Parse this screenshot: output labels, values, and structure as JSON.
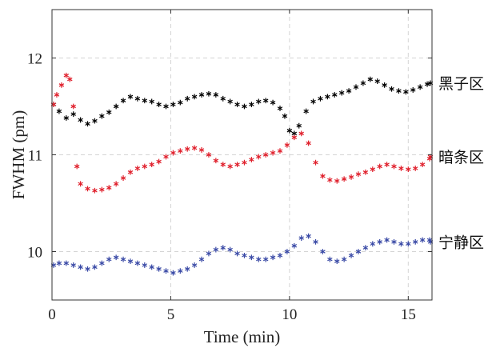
{
  "chart_data": {
    "type": "scatter",
    "title": "",
    "xlabel": "Time (min)",
    "ylabel": "FWHM (pm)",
    "xlim": [
      0,
      16
    ],
    "ylim": [
      9.5,
      12.5
    ],
    "xticks": [
      "0",
      "5",
      "10",
      "15"
    ],
    "yticks": [
      "10",
      "11",
      "12"
    ],
    "grid": true,
    "marker": "asterisk",
    "series": [
      {
        "name": "黑子区",
        "color": "#000000",
        "points": [
          [
            0.0,
            11.52
          ],
          [
            0.3,
            11.45
          ],
          [
            0.6,
            11.38
          ],
          [
            0.9,
            11.42
          ],
          [
            1.2,
            11.36
          ],
          [
            1.5,
            11.32
          ],
          [
            1.8,
            11.35
          ],
          [
            2.1,
            11.4
          ],
          [
            2.4,
            11.44
          ],
          [
            2.7,
            11.5
          ],
          [
            3.0,
            11.56
          ],
          [
            3.3,
            11.6
          ],
          [
            3.6,
            11.58
          ],
          [
            3.9,
            11.56
          ],
          [
            4.2,
            11.55
          ],
          [
            4.5,
            11.52
          ],
          [
            4.8,
            11.5
          ],
          [
            5.1,
            11.52
          ],
          [
            5.4,
            11.54
          ],
          [
            5.7,
            11.58
          ],
          [
            6.0,
            11.6
          ],
          [
            6.3,
            11.62
          ],
          [
            6.6,
            11.63
          ],
          [
            6.9,
            11.62
          ],
          [
            7.2,
            11.58
          ],
          [
            7.5,
            11.55
          ],
          [
            7.8,
            11.52
          ],
          [
            8.1,
            11.5
          ],
          [
            8.4,
            11.52
          ],
          [
            8.7,
            11.55
          ],
          [
            9.0,
            11.56
          ],
          [
            9.3,
            11.54
          ],
          [
            9.6,
            11.48
          ],
          [
            9.8,
            11.4
          ],
          [
            10.0,
            11.25
          ],
          [
            10.2,
            11.22
          ],
          [
            10.4,
            11.3
          ],
          [
            10.7,
            11.45
          ],
          [
            11.0,
            11.55
          ],
          [
            11.3,
            11.58
          ],
          [
            11.6,
            11.6
          ],
          [
            11.9,
            11.62
          ],
          [
            12.2,
            11.64
          ],
          [
            12.5,
            11.66
          ],
          [
            12.8,
            11.7
          ],
          [
            13.1,
            11.74
          ],
          [
            13.4,
            11.78
          ],
          [
            13.7,
            11.76
          ],
          [
            14.0,
            11.72
          ],
          [
            14.3,
            11.68
          ],
          [
            14.6,
            11.66
          ],
          [
            14.9,
            11.65
          ],
          [
            15.2,
            11.67
          ],
          [
            15.5,
            11.7
          ],
          [
            15.8,
            11.73
          ],
          [
            16.0,
            11.74
          ]
        ]
      },
      {
        "name": "暗条区",
        "color": "#e0202c",
        "points": [
          [
            0.0,
            11.52
          ],
          [
            0.2,
            11.62
          ],
          [
            0.4,
            11.72
          ],
          [
            0.6,
            11.82
          ],
          [
            0.75,
            11.78
          ],
          [
            0.9,
            11.5
          ],
          [
            1.05,
            10.88
          ],
          [
            1.2,
            10.7
          ],
          [
            1.5,
            10.65
          ],
          [
            1.8,
            10.63
          ],
          [
            2.1,
            10.64
          ],
          [
            2.4,
            10.66
          ],
          [
            2.7,
            10.7
          ],
          [
            3.0,
            10.76
          ],
          [
            3.3,
            10.82
          ],
          [
            3.6,
            10.86
          ],
          [
            3.9,
            10.88
          ],
          [
            4.2,
            10.9
          ],
          [
            4.5,
            10.93
          ],
          [
            4.8,
            10.98
          ],
          [
            5.1,
            11.02
          ],
          [
            5.4,
            11.04
          ],
          [
            5.7,
            11.06
          ],
          [
            6.0,
            11.07
          ],
          [
            6.3,
            11.05
          ],
          [
            6.6,
            11.0
          ],
          [
            6.9,
            10.94
          ],
          [
            7.2,
            10.9
          ],
          [
            7.5,
            10.88
          ],
          [
            7.8,
            10.9
          ],
          [
            8.1,
            10.92
          ],
          [
            8.4,
            10.95
          ],
          [
            8.7,
            10.98
          ],
          [
            9.0,
            11.0
          ],
          [
            9.3,
            11.02
          ],
          [
            9.6,
            11.04
          ],
          [
            9.9,
            11.1
          ],
          [
            10.2,
            11.18
          ],
          [
            10.5,
            11.22
          ],
          [
            10.8,
            11.12
          ],
          [
            11.1,
            10.92
          ],
          [
            11.4,
            10.78
          ],
          [
            11.7,
            10.74
          ],
          [
            12.0,
            10.73
          ],
          [
            12.3,
            10.75
          ],
          [
            12.6,
            10.77
          ],
          [
            12.9,
            10.8
          ],
          [
            13.2,
            10.82
          ],
          [
            13.5,
            10.85
          ],
          [
            13.8,
            10.88
          ],
          [
            14.1,
            10.9
          ],
          [
            14.4,
            10.88
          ],
          [
            14.7,
            10.86
          ],
          [
            15.0,
            10.85
          ],
          [
            15.3,
            10.86
          ],
          [
            15.6,
            10.9
          ],
          [
            15.9,
            10.96
          ],
          [
            16.0,
            10.98
          ]
        ]
      },
      {
        "name": "宁静区",
        "color": "#3a4aa6",
        "points": [
          [
            0.0,
            9.86
          ],
          [
            0.3,
            9.88
          ],
          [
            0.6,
            9.88
          ],
          [
            0.9,
            9.86
          ],
          [
            1.2,
            9.84
          ],
          [
            1.5,
            9.82
          ],
          [
            1.8,
            9.84
          ],
          [
            2.1,
            9.88
          ],
          [
            2.4,
            9.92
          ],
          [
            2.7,
            9.94
          ],
          [
            3.0,
            9.92
          ],
          [
            3.3,
            9.9
          ],
          [
            3.6,
            9.88
          ],
          [
            3.9,
            9.86
          ],
          [
            4.2,
            9.84
          ],
          [
            4.5,
            9.82
          ],
          [
            4.8,
            9.8
          ],
          [
            5.1,
            9.78
          ],
          [
            5.4,
            9.8
          ],
          [
            5.7,
            9.82
          ],
          [
            6.0,
            9.86
          ],
          [
            6.3,
            9.92
          ],
          [
            6.6,
            9.98
          ],
          [
            6.9,
            10.02
          ],
          [
            7.2,
            10.04
          ],
          [
            7.5,
            10.02
          ],
          [
            7.8,
            9.98
          ],
          [
            8.1,
            9.96
          ],
          [
            8.4,
            9.94
          ],
          [
            8.7,
            9.92
          ],
          [
            9.0,
            9.92
          ],
          [
            9.3,
            9.94
          ],
          [
            9.6,
            9.96
          ],
          [
            9.9,
            10.0
          ],
          [
            10.2,
            10.06
          ],
          [
            10.5,
            10.14
          ],
          [
            10.8,
            10.16
          ],
          [
            11.1,
            10.1
          ],
          [
            11.4,
            10.0
          ],
          [
            11.7,
            9.92
          ],
          [
            12.0,
            9.9
          ],
          [
            12.3,
            9.92
          ],
          [
            12.6,
            9.96
          ],
          [
            12.9,
            10.0
          ],
          [
            13.2,
            10.04
          ],
          [
            13.5,
            10.08
          ],
          [
            13.8,
            10.1
          ],
          [
            14.1,
            10.12
          ],
          [
            14.4,
            10.1
          ],
          [
            14.7,
            10.08
          ],
          [
            15.0,
            10.08
          ],
          [
            15.3,
            10.1
          ],
          [
            15.6,
            10.12
          ],
          [
            15.9,
            10.12
          ],
          [
            16.0,
            10.1
          ]
        ]
      }
    ]
  }
}
